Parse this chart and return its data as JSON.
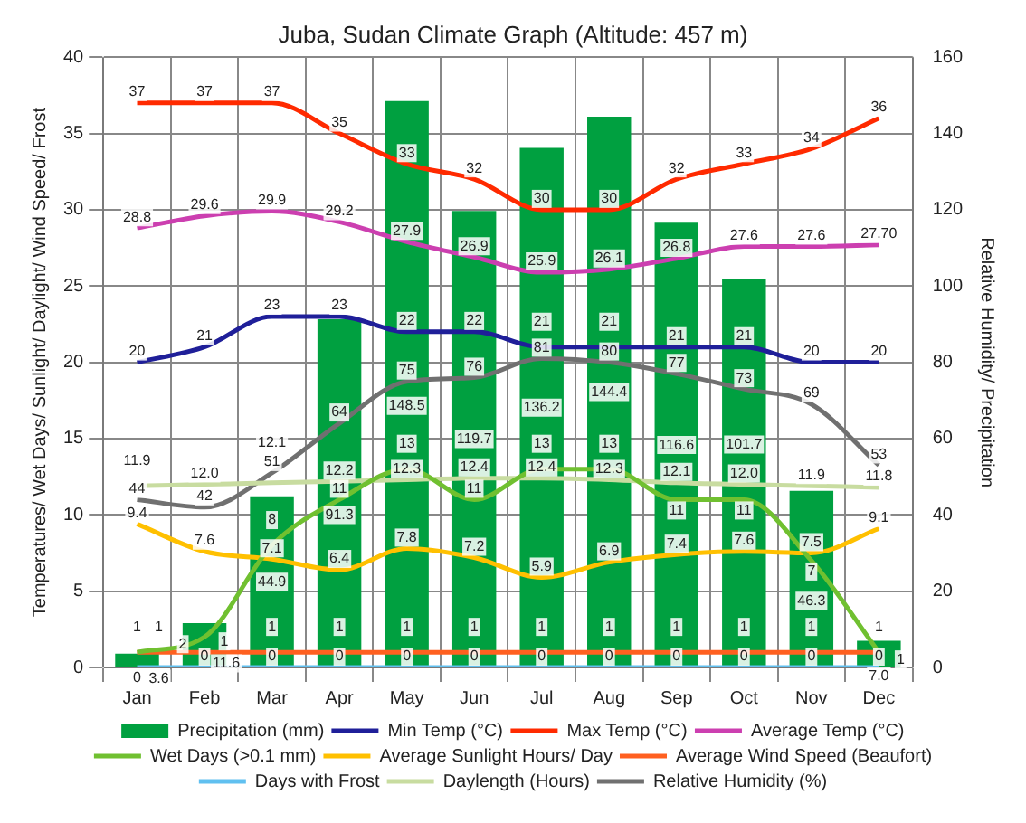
{
  "chart_data": {
    "type": "bar",
    "title": "Juba, Sudan Climate Graph (Altitude: 457 m)",
    "ylabel": "Temperatures/ Wet Days/ Sunlight/ Daylight/ Wind Speed/ Frost",
    "y2label": "Relative Humidity/ Precipitation",
    "categories": [
      "Jan",
      "Feb",
      "Mar",
      "Apr",
      "May",
      "Jun",
      "Jul",
      "Aug",
      "Sep",
      "Oct",
      "Nov",
      "Dec"
    ],
    "series": [
      {
        "name": "Precipitation (mm)",
        "axis": "y2",
        "color": "#00a040",
        "values": [
          3.6,
          11.6,
          44.9,
          91.3,
          148.5,
          119.7,
          136.2,
          144.4,
          116.6,
          101.7,
          46.3,
          7.0
        ],
        "value_labels": [
          "3.6",
          "11.6",
          "44.9",
          "91.3",
          "148.5",
          "119.7",
          "136.2",
          "144.4",
          "116.6",
          "101.7",
          "46.3",
          "7.0"
        ]
      },
      {
        "name": "Min Temp (°C)",
        "type": "line",
        "color": "#1f1f99",
        "values": [
          20,
          21,
          23,
          23,
          22,
          22,
          21,
          21,
          21,
          21,
          20,
          20
        ]
      },
      {
        "name": "Max Temp (°C)",
        "type": "line",
        "color": "#ff2a00",
        "values": [
          37,
          37,
          37,
          35,
          33,
          32,
          30,
          30,
          32,
          33,
          34,
          36
        ]
      },
      {
        "name": "Average Temp (°C)",
        "type": "line",
        "color": "#cc3fb0",
        "values": [
          28.8,
          29.6,
          29.9,
          29.2,
          27.9,
          26.9,
          25.9,
          26.1,
          26.8,
          27.6,
          27.6,
          27.7
        ],
        "value_labels": [
          "28.8",
          "29.6",
          "29.9",
          "29.2",
          "27.9",
          "26.9",
          "25.9",
          "26.1",
          "26.8",
          "27.6",
          "27.6",
          "27.70"
        ]
      },
      {
        "name": "Wet Days (>0.1 mm)",
        "type": "line",
        "color": "#70c030",
        "values": [
          1,
          2,
          8,
          11,
          13,
          11,
          13,
          13,
          11,
          11,
          7,
          1
        ]
      },
      {
        "name": "Average Sunlight Hours/ Day",
        "type": "line",
        "color": "#ffc000",
        "values": [
          9.4,
          7.6,
          7.1,
          6.4,
          7.8,
          7.2,
          5.9,
          6.9,
          7.4,
          7.6,
          7.5,
          9.1
        ]
      },
      {
        "name": "Average Wind Speed (Beaufort)",
        "type": "line",
        "color": "#ff6020",
        "values": [
          1,
          1,
          1,
          1,
          1,
          1,
          1,
          1,
          1,
          1,
          1,
          1
        ]
      },
      {
        "name": "Days with Frost",
        "type": "line",
        "color": "#60c0f0",
        "values": [
          0,
          0,
          0,
          0,
          0,
          0,
          0,
          0,
          0,
          0,
          0,
          0
        ]
      },
      {
        "name": "Daylength (Hours)",
        "type": "line",
        "color": "#c8dca0",
        "values": [
          11.9,
          12.0,
          12.1,
          12.2,
          12.3,
          12.4,
          12.4,
          12.3,
          12.1,
          12.0,
          11.9,
          11.8
        ],
        "value_labels": [
          "11.9",
          "12.0",
          "12.1",
          "12.2",
          "12.3",
          "12.4",
          "12.4",
          "12.3",
          "12.1",
          "12.0",
          "11.9",
          "11.8"
        ]
      },
      {
        "name": "Relative Humidity (%)",
        "type": "line",
        "axis": "y2",
        "color": "#707070",
        "values": [
          44,
          42,
          51,
          64,
          75,
          76,
          81,
          80,
          77,
          73,
          69,
          53
        ]
      }
    ],
    "ylim": [
      0,
      40
    ],
    "yticks": [
      0,
      5,
      10,
      15,
      20,
      25,
      30,
      35,
      40
    ],
    "y2lim": [
      0,
      160
    ],
    "y2ticks": [
      0,
      20,
      40,
      60,
      80,
      100,
      120,
      140,
      160
    ],
    "grid": true,
    "legend": "bottom",
    "data_labels": true
  }
}
